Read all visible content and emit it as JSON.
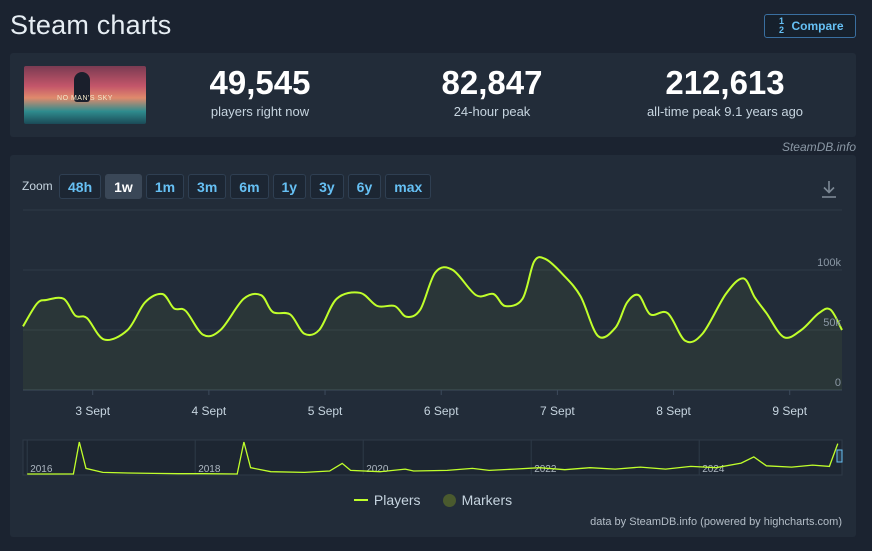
{
  "page": {
    "title": "Steam charts",
    "compare_label": "Compare"
  },
  "stats": {
    "game_banner_title": "NO MAN'S SKY",
    "players_now": {
      "value": "49,545",
      "label": "players right now"
    },
    "peak_24h": {
      "value": "82,847",
      "label": "24-hour peak"
    },
    "all_time_peak": {
      "value": "212,613",
      "label": "all-time peak 9.1 years ago"
    },
    "credit": "SteamDB.info"
  },
  "chart": {
    "zoom_label": "Zoom",
    "zoom_options": [
      "48h",
      "1w",
      "1m",
      "3m",
      "6m",
      "1y",
      "3y",
      "6y",
      "max"
    ],
    "zoom_selected": "1w",
    "legend": {
      "players": "Players",
      "markers": "Markers"
    },
    "credit": "data by SteamDB.info (powered by highcharts.com)"
  },
  "chart_data": {
    "type": "line",
    "series": [
      {
        "name": "Players",
        "color": "#c0ff2b",
        "x": [
          2.4,
          2.52,
          2.6,
          2.75,
          2.85,
          2.95,
          3.1,
          3.3,
          3.45,
          3.6,
          3.7,
          3.8,
          3.95,
          4.1,
          4.3,
          4.45,
          4.55,
          4.7,
          4.82,
          4.95,
          5.1,
          5.3,
          5.45,
          5.6,
          5.7,
          5.82,
          5.95,
          6.1,
          6.3,
          6.45,
          6.55,
          6.7,
          6.8,
          6.9,
          7.05,
          7.2,
          7.35,
          7.5,
          7.6,
          7.7,
          7.8,
          7.95,
          8.1,
          8.25,
          8.45,
          8.6,
          8.7,
          8.8,
          8.95,
          9.1,
          9.25,
          9.35,
          9.45
        ],
        "y": [
          53,
          72,
          75,
          76,
          62,
          60,
          42,
          50,
          73,
          80,
          68,
          66,
          46,
          50,
          76,
          79,
          65,
          63,
          47,
          50,
          76,
          81,
          70,
          70,
          61,
          67,
          98,
          100,
          79,
          80,
          70,
          76,
          107,
          109,
          96,
          78,
          45,
          52,
          73,
          79,
          63,
          64,
          41,
          47,
          80,
          93,
          77,
          64,
          44,
          50,
          64,
          67,
          50
        ],
        "values_unit": "players (thousands)"
      }
    ],
    "x_ticks": [
      "3 Sept",
      "4 Sept",
      "5 Sept",
      "6 Sept",
      "7 Sept",
      "8 Sept",
      "9 Sept"
    ],
    "x_tick_values": [
      3,
      4,
      5,
      6,
      7,
      8,
      9
    ],
    "xlim": [
      2.4,
      9.45
    ],
    "y_ticks": [
      "0",
      "50k",
      "100k"
    ],
    "y_tick_values": [
      0,
      50,
      100
    ],
    "ylim": [
      0,
      150
    ],
    "grid": true,
    "legend_position": "bottom-center",
    "navigator": {
      "years": [
        "2016",
        "2018",
        "2020",
        "2022",
        "2024"
      ],
      "year_values": [
        2016,
        2018,
        2020,
        2022,
        2024
      ],
      "xlim": [
        2015.95,
        2025.7
      ],
      "points": [
        [
          2016,
          3
        ],
        [
          2016.55,
          3
        ],
        [
          2016.62,
          100
        ],
        [
          2016.7,
          20
        ],
        [
          2016.9,
          8
        ],
        [
          2017.2,
          6
        ],
        [
          2017.5,
          5
        ],
        [
          2017.8,
          4
        ],
        [
          2018.1,
          4
        ],
        [
          2018.5,
          3
        ],
        [
          2018.58,
          100
        ],
        [
          2018.66,
          22
        ],
        [
          2018.9,
          10
        ],
        [
          2019.3,
          8
        ],
        [
          2019.6,
          12
        ],
        [
          2019.75,
          35
        ],
        [
          2019.85,
          14
        ],
        [
          2020.2,
          10
        ],
        [
          2020.5,
          18
        ],
        [
          2020.6,
          12
        ],
        [
          2021.0,
          14
        ],
        [
          2021.3,
          20
        ],
        [
          2021.5,
          14
        ],
        [
          2021.8,
          18
        ],
        [
          2022.1,
          22
        ],
        [
          2022.4,
          16
        ],
        [
          2022.7,
          22
        ],
        [
          2023.0,
          18
        ],
        [
          2023.3,
          24
        ],
        [
          2023.6,
          18
        ],
        [
          2023.9,
          26
        ],
        [
          2024.2,
          22
        ],
        [
          2024.5,
          36
        ],
        [
          2024.65,
          55
        ],
        [
          2024.8,
          28
        ],
        [
          2025.1,
          24
        ],
        [
          2025.35,
          30
        ],
        [
          2025.55,
          26
        ],
        [
          2025.65,
          95
        ]
      ]
    }
  }
}
